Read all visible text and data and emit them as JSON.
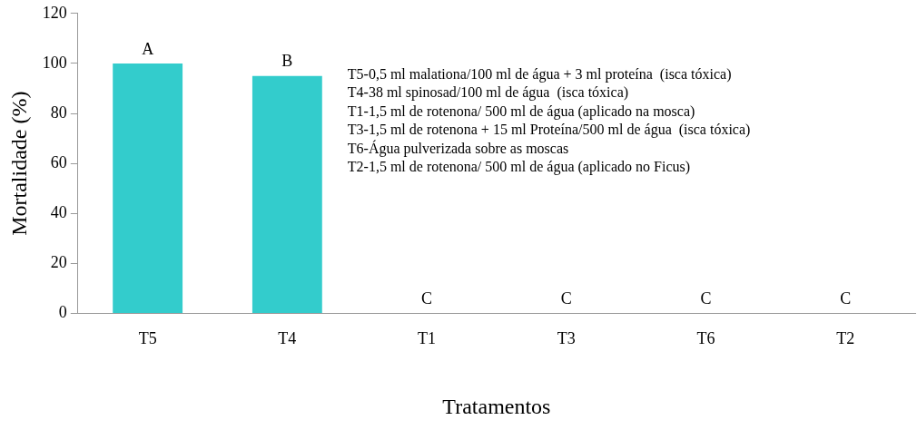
{
  "chart_data": {
    "type": "bar",
    "xlabel": "Tratamentos",
    "ylabel": "Mortalidade (%)",
    "categories": [
      "T5",
      "T4",
      "T1",
      "T3",
      "T6",
      "T2"
    ],
    "values": [
      100,
      95,
      0,
      0,
      0,
      0
    ],
    "color": "#33cccc",
    "ylim": [
      0,
      120
    ],
    "yticks": [
      0,
      20,
      40,
      60,
      80,
      100,
      120
    ],
    "grid": false,
    "legend": false,
    "annotations": [
      {
        "text": "A",
        "x": "T5",
        "y": 100
      },
      {
        "text": "B",
        "x": "T4",
        "y": 95
      },
      {
        "text": "C",
        "x": "T1",
        "y": 0
      },
      {
        "text": "C",
        "x": "T3",
        "y": 0
      },
      {
        "text": "C",
        "x": "T6",
        "y": 0
      },
      {
        "text": "C",
        "x": "T2",
        "y": 0
      },
      "T5-0,5 ml malationa/100 ml de água + 3 ml proteína  (isca tóxica)",
      "T4-38 ml spinosad/100 ml de água  (isca tóxica)",
      "T1-1,5 ml de rotenona/ 500 ml de água (aplicado na mosca)",
      "T3-1,5 ml de rotenona + 15 ml Proteína/500 ml de água  (isca tóxica)",
      "T6-Água pulverizada sobre as moscas",
      "T2-1,5 ml de rotenona/ 500 ml de água (aplicado no Ficus)"
    ]
  }
}
